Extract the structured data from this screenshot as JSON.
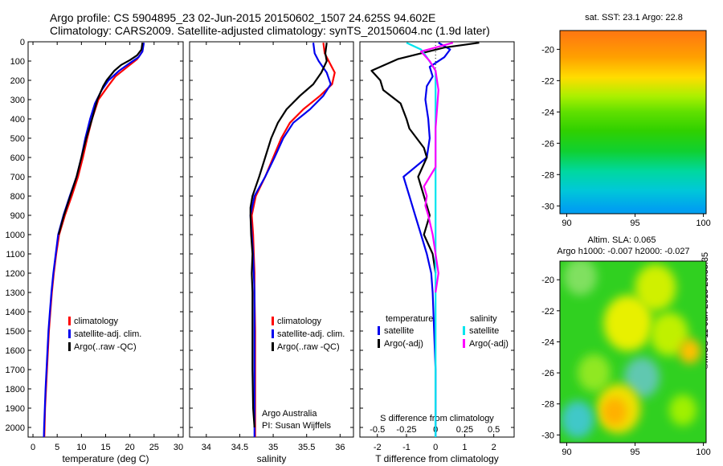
{
  "header": {
    "line1": "Argo profile: CS 5904895_23 02-Jun-2015 20150602_1507 24.625S 94.602E",
    "line2": "Climatology: CARS2009. Satellite-adjusted climatology: synTS_20150604.nc (1.9d later)"
  },
  "timestamp_label": "©IMOS 11-Jun-2015 20:38:35",
  "colors": {
    "red": "#ff0000",
    "blue": "#0000ee",
    "black": "#000000",
    "cyan": "#00e5ee",
    "magenta": "#ff00ff"
  },
  "depth_ticks": [
    "0",
    "100",
    "200",
    "300",
    "400",
    "500",
    "600",
    "700",
    "800",
    "900",
    "1000",
    "1100",
    "1200",
    "1300",
    "1400",
    "1500",
    "1600",
    "1700",
    "1800",
    "1900",
    "2000"
  ],
  "chart_data": [
    {
      "type": "line",
      "panel": "temperature",
      "xlabel": "temperature (deg C)",
      "xlim": [
        -1,
        31
      ],
      "xticks": [
        "0",
        "5",
        "10",
        "15",
        "20",
        "25",
        "30"
      ],
      "ylim": [
        2050,
        0
      ],
      "legend": [
        "climatology",
        "satellite-adj. clim.",
        "Argo(..raw -QC)"
      ],
      "series": [
        {
          "name": "climatology",
          "color": "red",
          "points": [
            [
              22.8,
              5
            ],
            [
              22.6,
              50
            ],
            [
              21.5,
              90
            ],
            [
              19.5,
              130
            ],
            [
              17,
              180
            ],
            [
              15.5,
              230
            ],
            [
              13.5,
              300
            ],
            [
              12.2,
              400
            ],
            [
              11.2,
              500
            ],
            [
              10.3,
              600
            ],
            [
              9.3,
              700
            ],
            [
              8,
              800
            ],
            [
              6.6,
              900
            ],
            [
              5.4,
              1000
            ],
            [
              4.8,
              1100
            ],
            [
              4.3,
              1200
            ],
            [
              3.9,
              1300
            ],
            [
              3.6,
              1400
            ],
            [
              3.3,
              1500
            ],
            [
              3.1,
              1600
            ],
            [
              2.9,
              1700
            ],
            [
              2.7,
              1800
            ],
            [
              2.5,
              1900
            ],
            [
              2.4,
              2000
            ],
            [
              2.35,
              2050
            ]
          ]
        },
        {
          "name": "satellite-adj. clim.",
          "color": "blue",
          "points": [
            [
              22.9,
              5
            ],
            [
              22.6,
              50
            ],
            [
              21.8,
              80
            ],
            [
              20,
              110
            ],
            [
              17.8,
              150
            ],
            [
              15.6,
              200
            ],
            [
              14.2,
              250
            ],
            [
              12.8,
              320
            ],
            [
              11.8,
              400
            ],
            [
              10.8,
              500
            ],
            [
              10,
              600
            ],
            [
              9,
              700
            ],
            [
              7.6,
              800
            ],
            [
              6.3,
              900
            ],
            [
              5.2,
              1000
            ],
            [
              4.7,
              1100
            ],
            [
              4.2,
              1200
            ],
            [
              3.8,
              1300
            ],
            [
              3.5,
              1400
            ],
            [
              3.2,
              1500
            ],
            [
              3,
              1600
            ],
            [
              2.8,
              1700
            ],
            [
              2.6,
              1800
            ],
            [
              2.45,
              1900
            ],
            [
              2.3,
              2000
            ],
            [
              2.25,
              2050
            ]
          ]
        },
        {
          "name": "Argo(..raw -QC)",
          "color": "black",
          "points": [
            [
              22.6,
              5
            ],
            [
              22.4,
              40
            ],
            [
              21.5,
              70
            ],
            [
              20,
              95
            ],
            [
              18.2,
              120
            ],
            [
              16.8,
              150
            ],
            [
              15.2,
              200
            ],
            [
              14.5,
              230
            ],
            [
              13.3,
              300
            ],
            [
              12.2,
              400
            ],
            [
              11,
              500
            ],
            [
              10,
              600
            ],
            [
              9,
              700
            ],
            [
              7.7,
              800
            ],
            [
              6.4,
              900
            ],
            [
              5.3,
              1000
            ]
          ]
        }
      ]
    },
    {
      "type": "line",
      "panel": "salinity",
      "xlabel": "salinity",
      "xlim": [
        33.75,
        36.2
      ],
      "xticks": [
        "34",
        "34.5",
        "35",
        "35.5",
        "36"
      ],
      "ylim": [
        2050,
        0
      ],
      "legend": [
        "climatology",
        "satellite-adj. clim.",
        "Argo(..raw -QC)"
      ],
      "annotations": [
        "Argo Australia",
        "PI: Susan Wijffels"
      ],
      "series": [
        {
          "name": "climatology",
          "color": "red",
          "points": [
            [
              35.75,
              5
            ],
            [
              35.77,
              60
            ],
            [
              35.83,
              100
            ],
            [
              35.92,
              160
            ],
            [
              35.88,
              220
            ],
            [
              35.7,
              280
            ],
            [
              35.45,
              350
            ],
            [
              35.25,
              420
            ],
            [
              35.12,
              500
            ],
            [
              35,
              600
            ],
            [
              34.88,
              700
            ],
            [
              34.74,
              800
            ],
            [
              34.68,
              900
            ],
            [
              34.7,
              1000
            ],
            [
              34.71,
              1100
            ],
            [
              34.72,
              1200
            ],
            [
              34.72,
              1300
            ],
            [
              34.73,
              1500
            ],
            [
              34.73,
              1700
            ],
            [
              34.73,
              1900
            ],
            [
              34.73,
              2050
            ]
          ]
        },
        {
          "name": "satellite-adj. clim.",
          "color": "blue",
          "points": [
            [
              35.6,
              5
            ],
            [
              35.62,
              60
            ],
            [
              35.68,
              100
            ],
            [
              35.8,
              160
            ],
            [
              35.86,
              220
            ],
            [
              35.75,
              280
            ],
            [
              35.55,
              350
            ],
            [
              35.3,
              420
            ],
            [
              35.15,
              500
            ],
            [
              35.02,
              600
            ],
            [
              34.88,
              700
            ],
            [
              34.72,
              800
            ],
            [
              34.66,
              900
            ],
            [
              34.68,
              1000
            ],
            [
              34.7,
              1100
            ],
            [
              34.71,
              1200
            ],
            [
              34.72,
              1300
            ],
            [
              34.72,
              1500
            ],
            [
              34.72,
              1700
            ],
            [
              34.72,
              1900
            ],
            [
              34.72,
              2050
            ]
          ]
        },
        {
          "name": "Argo(..raw -QC)",
          "color": "black",
          "points": [
            [
              35.8,
              5
            ],
            [
              35.78,
              60
            ],
            [
              35.8,
              100
            ],
            [
              35.72,
              160
            ],
            [
              35.6,
              220
            ],
            [
              35.4,
              280
            ],
            [
              35.2,
              350
            ],
            [
              35.07,
              420
            ],
            [
              34.97,
              500
            ],
            [
              34.88,
              600
            ],
            [
              34.79,
              700
            ],
            [
              34.69,
              800
            ],
            [
              34.66,
              860
            ],
            [
              34.66,
              900
            ],
            [
              34.67,
              1000
            ],
            [
              34.69,
              1100
            ],
            [
              34.68,
              1200
            ],
            [
              34.69,
              1300
            ],
            [
              34.69,
              1500
            ],
            [
              34.69,
              1700
            ],
            [
              34.7,
              1900
            ],
            [
              34.72,
              2000
            ]
          ]
        }
      ]
    },
    {
      "type": "line",
      "panel": "differences",
      "xlabel": "T difference from climatology",
      "xlabel_top": "S difference from climatology",
      "xlim": [
        -2.6,
        2.7
      ],
      "xticks": [
        "-2",
        "-1",
        "0",
        "1",
        "2"
      ],
      "xticks_top": [
        "-0.5",
        "-0.25",
        "0",
        "0.25",
        "0.5"
      ],
      "ylim": [
        2050,
        0
      ],
      "legend_titles": [
        "temperature",
        "salinity"
      ],
      "legend": [
        "satellite",
        "Argo(-adj)",
        "satellite",
        "Argo(-adj)"
      ],
      "series": [
        {
          "name": "temperature satellite",
          "color": "blue",
          "points": [
            [
              0.1,
              5
            ],
            [
              0.5,
              40
            ],
            [
              0.3,
              80
            ],
            [
              -0.2,
              130
            ],
            [
              -0.1,
              180
            ],
            [
              -0.3,
              230
            ],
            [
              -0.35,
              300
            ],
            [
              -0.25,
              400
            ],
            [
              -0.2,
              500
            ],
            [
              -0.3,
              600
            ],
            [
              -1.1,
              700
            ],
            [
              -0.9,
              800
            ],
            [
              -0.7,
              900
            ],
            [
              -0.5,
              1000
            ],
            [
              -0.3,
              1100
            ],
            [
              -0.15,
              1200
            ],
            [
              -0.1,
              1300
            ],
            [
              -0.05,
              1500
            ],
            [
              0,
              1700
            ],
            [
              0,
              1900
            ],
            [
              0,
              2050
            ]
          ]
        },
        {
          "name": "temperature Argo(-adj)",
          "color": "black",
          "points": [
            [
              1.5,
              5
            ],
            [
              0.3,
              30
            ],
            [
              -1.3,
              90
            ],
            [
              -2.2,
              150
            ],
            [
              -1.9,
              200
            ],
            [
              -1.8,
              250
            ],
            [
              -1.2,
              320
            ],
            [
              -1,
              400
            ],
            [
              -0.9,
              450
            ],
            [
              -0.4,
              550
            ],
            [
              -0.3,
              600
            ],
            [
              -0.6,
              700
            ],
            [
              -0.4,
              800
            ],
            [
              -0.2,
              900
            ],
            [
              -0.4,
              1000
            ],
            [
              -0.1,
              1100
            ],
            [
              0,
              1200
            ]
          ]
        },
        {
          "name": "salinity satellite",
          "color": "cyan",
          "points": [
            [
              -1,
              5
            ],
            [
              -0.5,
              40
            ],
            [
              -0.3,
              80
            ],
            [
              0,
              150
            ],
            [
              0,
              300
            ],
            [
              0,
              500
            ],
            [
              0,
              700
            ],
            [
              0,
              900
            ],
            [
              0,
              1100
            ],
            [
              0,
              1300
            ],
            [
              0,
              1500
            ],
            [
              0,
              1700
            ],
            [
              0,
              1900
            ],
            [
              0,
              2050
            ]
          ]
        },
        {
          "name": "salinity Argo(-adj)",
          "color": "magenta",
          "points": [
            [
              0.6,
              5
            ],
            [
              -0.5,
              50
            ],
            [
              -0.2,
              100
            ],
            [
              0,
              150
            ],
            [
              0.1,
              250
            ],
            [
              0.05,
              350
            ],
            [
              0,
              450
            ],
            [
              0,
              550
            ],
            [
              0,
              650
            ],
            [
              -0.4,
              750
            ],
            [
              -0.3,
              800
            ],
            [
              -0.35,
              850
            ],
            [
              -0.25,
              900
            ],
            [
              -0.1,
              1000
            ],
            [
              0,
              1100
            ],
            [
              0.1,
              1200
            ],
            [
              0,
              1300
            ]
          ]
        }
      ]
    },
    {
      "type": "heatmap",
      "panel": "sst-map",
      "title": "sat. SST: 23.1  Argo: 22.8",
      "xlim": [
        89.5,
        100.2
      ],
      "ylim": [
        -30.5,
        -18.8
      ],
      "xticks": [
        "90",
        "95",
        "100"
      ],
      "yticks": [
        "-20",
        "-22",
        "-24",
        "-26",
        "-28",
        "-30"
      ],
      "bands": [
        {
          "lat": -19,
          "color": "#ff7a10"
        },
        {
          "lat": -20.5,
          "color": "#ffa000"
        },
        {
          "lat": -21.8,
          "color": "#ffdd00"
        },
        {
          "lat": -23,
          "color": "#aaf000"
        },
        {
          "lat": -24,
          "color": "#60e000"
        },
        {
          "lat": -25.2,
          "color": "#30d000"
        },
        {
          "lat": -26.5,
          "color": "#10d030"
        },
        {
          "lat": -27.8,
          "color": "#00d8a0"
        },
        {
          "lat": -29,
          "color": "#00c8d8"
        },
        {
          "lat": -30.2,
          "color": "#00a0f0"
        }
      ]
    },
    {
      "type": "heatmap",
      "panel": "sla-map",
      "title": "Altim. SLA: 0.065",
      "subtitle": "Argo h1000: -0.007  h2000: -0.027",
      "xlim": [
        89.5,
        100.2
      ],
      "ylim": [
        -30.5,
        -18.8
      ],
      "xticks": [
        "90",
        "95",
        "100"
      ],
      "yticks": [
        "-20",
        "-22",
        "-24",
        "-26",
        "-28",
        "-30"
      ],
      "base_color": "#30d020",
      "blobs": [
        {
          "lon": 91,
          "lat": -19.8,
          "r": 1.2,
          "color": "#80e060"
        },
        {
          "lon": 96.5,
          "lat": -20.5,
          "r": 1.5,
          "color": "#d0f000"
        },
        {
          "lon": 94.5,
          "lat": -22.8,
          "r": 1.8,
          "color": "#e8f000"
        },
        {
          "lon": 97.5,
          "lat": -23.5,
          "r": 1.4,
          "color": "#c0f000"
        },
        {
          "lon": 99,
          "lat": -24.6,
          "r": 0.8,
          "color": "#ffc000"
        },
        {
          "lon": 92,
          "lat": -26,
          "r": 1.2,
          "color": "#90e820"
        },
        {
          "lon": 95.5,
          "lat": -26.3,
          "r": 1.3,
          "color": "#60c8b0"
        },
        {
          "lon": 93.8,
          "lat": -28.3,
          "r": 1.6,
          "color": "#f0e000"
        },
        {
          "lon": 93.5,
          "lat": -28.5,
          "r": 0.9,
          "color": "#ffb000"
        },
        {
          "lon": 90.8,
          "lat": -29,
          "r": 1.2,
          "color": "#40c8c8"
        },
        {
          "lon": 98.5,
          "lat": -28.4,
          "r": 1.0,
          "color": "#a0f000"
        }
      ]
    }
  ]
}
